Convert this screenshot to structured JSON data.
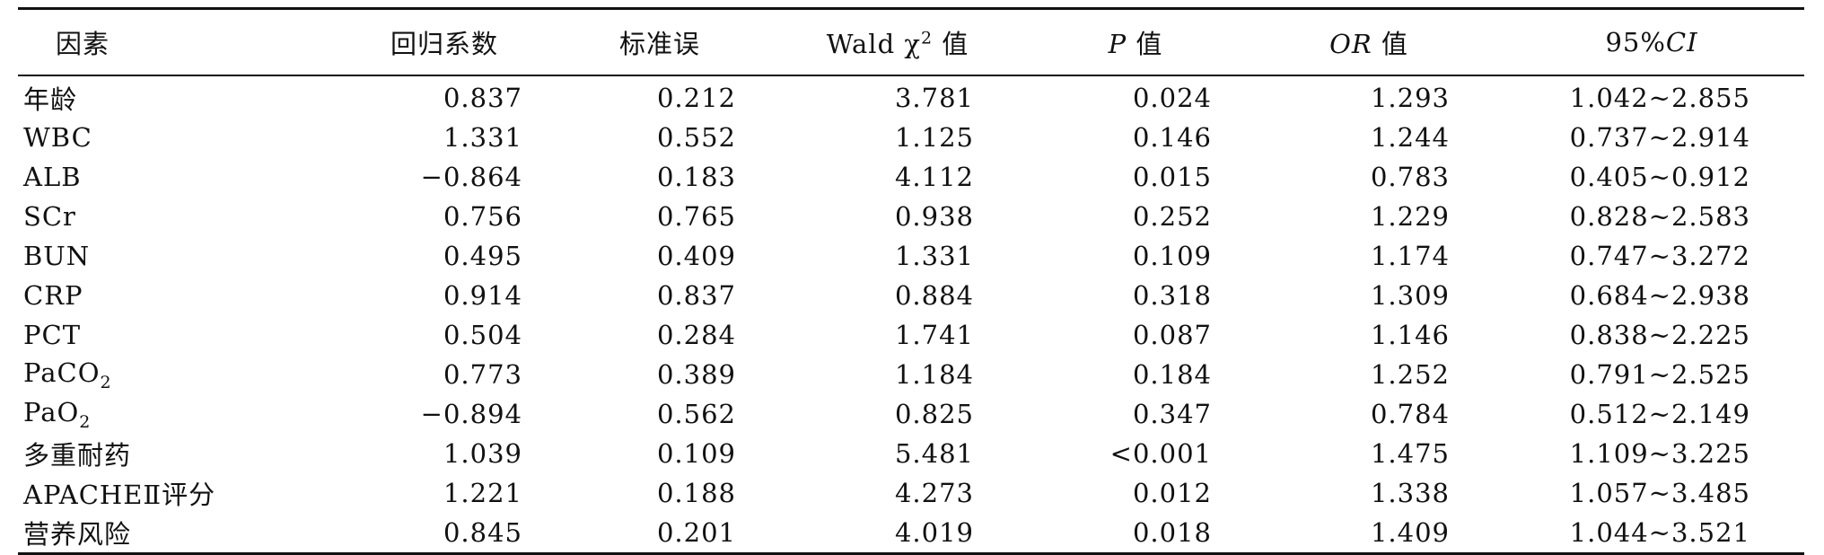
{
  "table": {
    "headers": {
      "factor": "因素",
      "coef": "回归系数",
      "se": "标准误",
      "wald_prefix": "Wald χ",
      "wald_sup": "2",
      "wald_suffix": " 值",
      "p_italic": "P",
      "p_suffix": " 值",
      "or_italic": "OR",
      "or_suffix": " 值",
      "ci_prefix": "95%",
      "ci_italic": "CI"
    },
    "rows": [
      {
        "factor": "年龄",
        "factor_sub": "",
        "factor_suffix": "",
        "coef": "0.837",
        "se": "0.212",
        "wald": "3.781",
        "p": "0.024",
        "or": "1.293",
        "ci": "1.042~2.855"
      },
      {
        "factor": "WBC",
        "factor_sub": "",
        "factor_suffix": "",
        "coef": "1.331",
        "se": "0.552",
        "wald": "1.125",
        "p": "0.146",
        "or": "1.244",
        "ci": "0.737~2.914"
      },
      {
        "factor": "ALB",
        "factor_sub": "",
        "factor_suffix": "",
        "coef": "−0.864",
        "se": "0.183",
        "wald": "4.112",
        "p": "0.015",
        "or": "0.783",
        "ci": "0.405~0.912"
      },
      {
        "factor": "SCr",
        "factor_sub": "",
        "factor_suffix": "",
        "coef": "0.756",
        "se": "0.765",
        "wald": "0.938",
        "p": "0.252",
        "or": "1.229",
        "ci": "0.828~2.583"
      },
      {
        "factor": "BUN",
        "factor_sub": "",
        "factor_suffix": "",
        "coef": "0.495",
        "se": "0.409",
        "wald": "1.331",
        "p": "0.109",
        "or": "1.174",
        "ci": "0.747~3.272"
      },
      {
        "factor": "CRP",
        "factor_sub": "",
        "factor_suffix": "",
        "coef": "0.914",
        "se": "0.837",
        "wald": "0.884",
        "p": "0.318",
        "or": "1.309",
        "ci": "0.684~2.938"
      },
      {
        "factor": "PCT",
        "factor_sub": "",
        "factor_suffix": "",
        "coef": "0.504",
        "se": "0.284",
        "wald": "1.741",
        "p": "0.087",
        "or": "1.146",
        "ci": "0.838~2.225"
      },
      {
        "factor": "PaCO",
        "factor_sub": "2",
        "factor_suffix": "",
        "coef": "0.773",
        "se": "0.389",
        "wald": "1.184",
        "p": "0.184",
        "or": "1.252",
        "ci": "0.791~2.525"
      },
      {
        "factor": "PaO",
        "factor_sub": "2",
        "factor_suffix": "",
        "coef": "−0.894",
        "se": "0.562",
        "wald": "0.825",
        "p": "0.347",
        "or": "0.784",
        "ci": "0.512~2.149"
      },
      {
        "factor": "多重耐药",
        "factor_sub": "",
        "factor_suffix": "",
        "coef": "1.039",
        "se": "0.109",
        "wald": "5.481",
        "p": "<0.001",
        "or": "1.475",
        "ci": "1.109~3.225"
      },
      {
        "factor": "APACHEⅡ评分",
        "factor_sub": "",
        "factor_suffix": "",
        "coef": "1.221",
        "se": "0.188",
        "wald": "4.273",
        "p": "0.012",
        "or": "1.338",
        "ci": "1.057~3.485"
      },
      {
        "factor": "营养风险",
        "factor_sub": "",
        "factor_suffix": "",
        "coef": "0.845",
        "se": "0.201",
        "wald": "4.019",
        "p": "0.018",
        "or": "1.409",
        "ci": "1.044~3.521"
      }
    ]
  }
}
